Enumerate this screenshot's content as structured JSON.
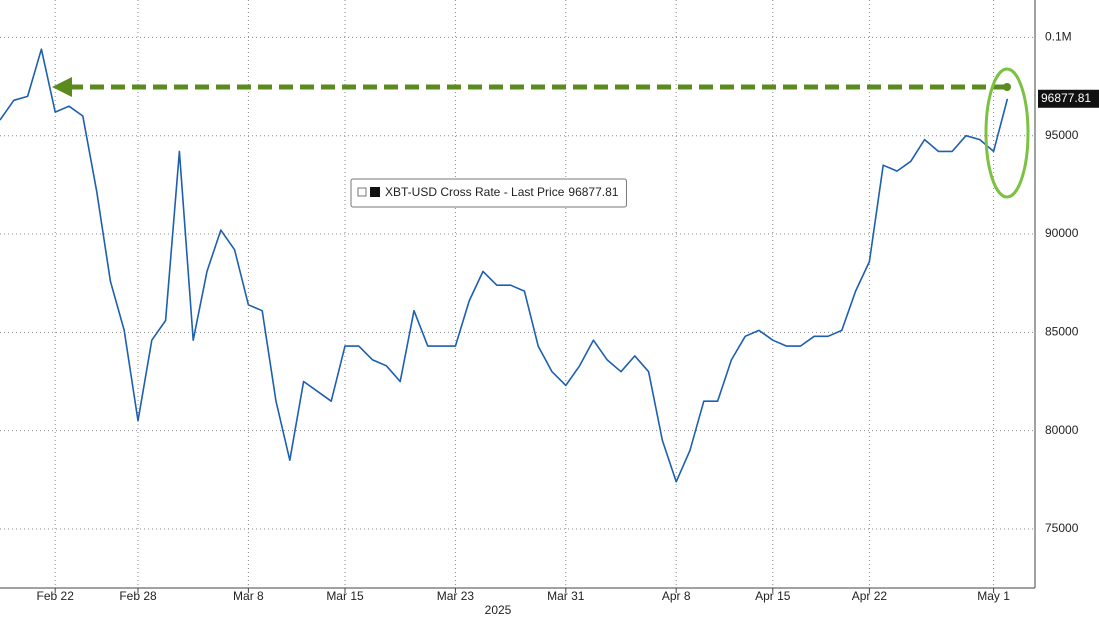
{
  "chart_data": {
    "type": "line",
    "x": [
      "2025-02-18",
      "2025-02-19",
      "2025-02-20",
      "2025-02-21",
      "2025-02-22",
      "2025-02-23",
      "2025-02-24",
      "2025-02-25",
      "2025-02-26",
      "2025-02-27",
      "2025-02-28",
      "2025-03-01",
      "2025-03-02",
      "2025-03-03",
      "2025-03-04",
      "2025-03-05",
      "2025-03-06",
      "2025-03-07",
      "2025-03-08",
      "2025-03-09",
      "2025-03-10",
      "2025-03-11",
      "2025-03-12",
      "2025-03-13",
      "2025-03-14",
      "2025-03-15",
      "2025-03-16",
      "2025-03-17",
      "2025-03-18",
      "2025-03-19",
      "2025-03-20",
      "2025-03-21",
      "2025-03-22",
      "2025-03-23",
      "2025-03-24",
      "2025-03-25",
      "2025-03-26",
      "2025-03-27",
      "2025-03-28",
      "2025-03-29",
      "2025-03-30",
      "2025-03-31",
      "2025-04-01",
      "2025-04-02",
      "2025-04-03",
      "2025-04-04",
      "2025-04-05",
      "2025-04-06",
      "2025-04-07",
      "2025-04-08",
      "2025-04-09",
      "2025-04-10",
      "2025-04-11",
      "2025-04-12",
      "2025-04-13",
      "2025-04-14",
      "2025-04-15",
      "2025-04-16",
      "2025-04-17",
      "2025-04-18",
      "2025-04-19",
      "2025-04-20",
      "2025-04-21",
      "2025-04-22",
      "2025-04-23",
      "2025-04-24",
      "2025-04-25",
      "2025-04-26",
      "2025-04-27",
      "2025-04-28",
      "2025-04-29",
      "2025-04-30",
      "2025-05-01",
      "2025-05-02"
    ],
    "series": [
      {
        "name": "XBT-USD Cross Rate - Last Price",
        "color": "#1d5fb0",
        "values": [
          95800,
          96800,
          97000,
          99400,
          96200,
          96500,
          96000,
          92200,
          87600,
          85100,
          80500,
          84600,
          85600,
          94200,
          84600,
          88100,
          90200,
          89200,
          86400,
          86100,
          81500,
          78500,
          82500,
          82000,
          81500,
          84300,
          84300,
          83600,
          83300,
          82500,
          86100,
          84300,
          84300,
          84300,
          86600,
          88100,
          87400,
          87400,
          87100,
          84300,
          83000,
          82300,
          83300,
          84600,
          83600,
          83000,
          83800,
          83000,
          79500,
          77400,
          79000,
          81500,
          81500,
          83600,
          84800,
          85100,
          84600,
          84300,
          84300,
          84800,
          84800,
          85100,
          87100,
          88600,
          93500,
          93200,
          93700,
          94800,
          94200,
          94200,
          95000,
          94800,
          94200,
          96877.81
        ]
      }
    ],
    "x_label": "2025",
    "xlim": [
      "2025-02-18",
      "2025-05-04"
    ],
    "xticks": [
      {
        "value": "2025-02-22",
        "label": "Feb 22"
      },
      {
        "value": "2025-02-28",
        "label": "Feb 28"
      },
      {
        "value": "2025-03-08",
        "label": "Mar 8"
      },
      {
        "value": "2025-03-15",
        "label": "Mar 15"
      },
      {
        "value": "2025-03-23",
        "label": "Mar 23"
      },
      {
        "value": "2025-03-31",
        "label": "Mar 31"
      },
      {
        "value": "2025-04-08",
        "label": "Apr 8"
      },
      {
        "value": "2025-04-15",
        "label": "Apr 15"
      },
      {
        "value": "2025-04-22",
        "label": "Apr 22"
      },
      {
        "value": "2025-05-01",
        "label": "May 1"
      }
    ],
    "ylim": [
      72000,
      101900
    ],
    "yticks": [
      75000,
      80000,
      85000,
      90000,
      95000,
      {
        "value": 100000,
        "label": "0.1M"
      }
    ],
    "grid": true
  }
}
